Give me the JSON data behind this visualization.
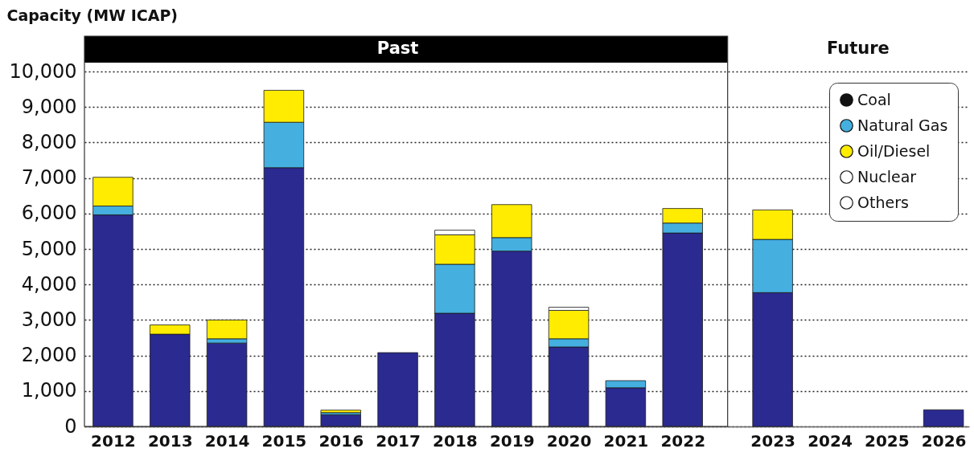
{
  "chart_data": {
    "type": "bar",
    "stacked": true,
    "ylabel": "Capacity (MW ICAP)",
    "categories": [
      "2012",
      "2013",
      "2014",
      "2015",
      "2016",
      "2017",
      "2018",
      "2019",
      "2020",
      "2021",
      "2022",
      "2023",
      "2024",
      "2025",
      "2026"
    ],
    "series": [
      {
        "color": "#2b2a90",
        "values": [
          5960,
          2600,
          2350,
          7290,
          330,
          2080,
          3190,
          4940,
          2240,
          1090,
          5450,
          3770,
          null,
          null,
          470
        ]
      },
      {
        "name": "Coal",
        "color": "#111111",
        "values": [
          null,
          null,
          null,
          null,
          null,
          null,
          null,
          null,
          null,
          null,
          null,
          null,
          null,
          null,
          null
        ]
      },
      {
        "name": "Natural Gas",
        "color": "#45afe0",
        "values": [
          250,
          null,
          120,
          1280,
          60,
          null,
          1380,
          380,
          230,
          200,
          280,
          1500,
          null,
          null,
          null
        ]
      },
      {
        "name": "Oil/Diesel",
        "color": "#ffec00",
        "values": [
          810,
          260,
          530,
          900,
          70,
          null,
          830,
          930,
          800,
          null,
          410,
          830,
          null,
          null,
          null
        ]
      },
      {
        "name": "Nuclear",
        "color": "#ffffff",
        "values": [
          null,
          null,
          null,
          null,
          null,
          null,
          null,
          null,
          null,
          null,
          null,
          null,
          null,
          null,
          null
        ]
      },
      {
        "name": "Others",
        "color": "#ffffff",
        "values": [
          null,
          null,
          null,
          null,
          null,
          null,
          130,
          null,
          90,
          null,
          null,
          null,
          null,
          null,
          null
        ]
      }
    ],
    "ylim": [
      0,
      10000
    ],
    "yticks": [
      0,
      {
        "value": 1000,
        "label": "1,000"
      },
      {
        "value": 2000,
        "label": "2,000"
      },
      {
        "value": 3000,
        "label": "3,000"
      },
      {
        "value": 4000,
        "label": "4,000"
      },
      {
        "value": 5000,
        "label": "5,000"
      },
      {
        "value": 6000,
        "label": "6,000"
      },
      {
        "value": 7000,
        "label": "7,000"
      },
      {
        "value": 8000,
        "label": "8,000"
      },
      {
        "value": 9000,
        "label": "9,000"
      },
      {
        "value": 10000,
        "label": "10,000"
      }
    ],
    "annotations": [
      "Past",
      "Future"
    ],
    "grid": "y",
    "legend": "top right"
  }
}
